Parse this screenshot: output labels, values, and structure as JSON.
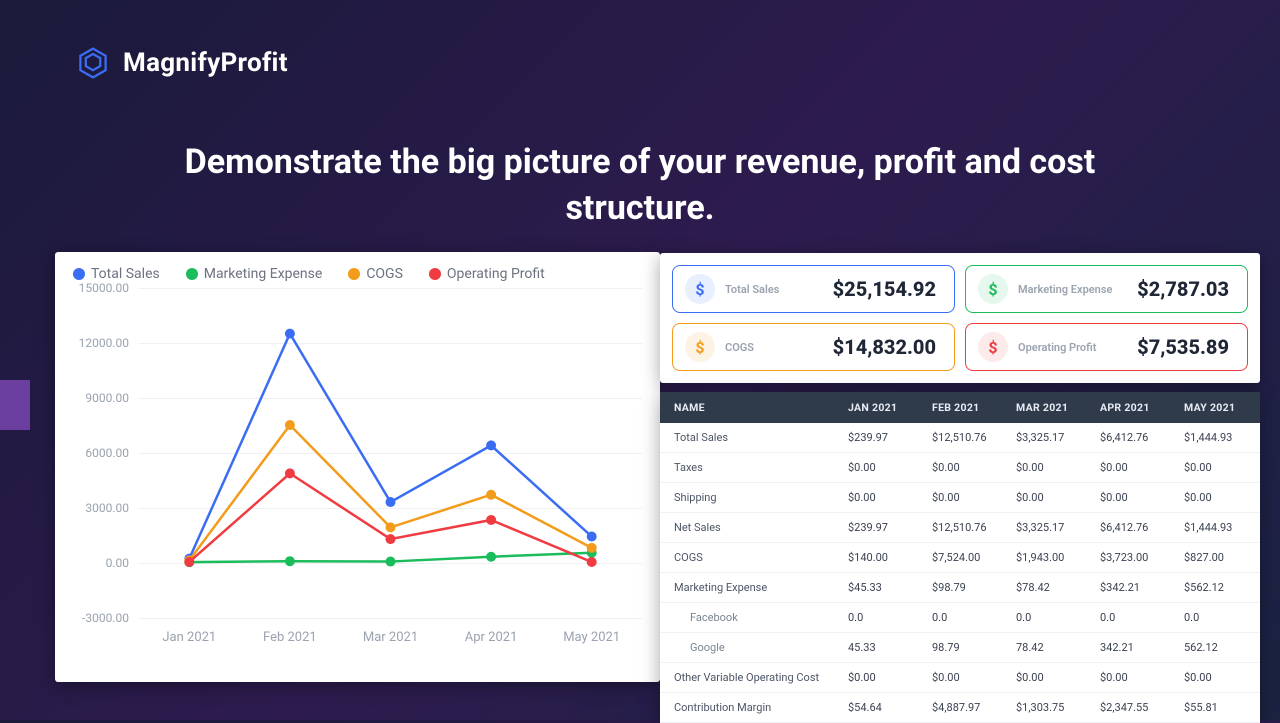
{
  "brand": "MagnifyProfit",
  "headline": "Demonstrate the big picture of your revenue, profit and cost structure.",
  "chart": {
    "type": "line",
    "background_color": "#ffffff",
    "grid_color": "#eef0f3",
    "x_labels": [
      "Jan 2021",
      "Feb 2021",
      "Mar 2021",
      "Apr 2021",
      "May 2021"
    ],
    "y_ticks": [
      -3000,
      0,
      3000,
      6000,
      9000,
      12000,
      15000
    ],
    "y_tick_labels": [
      "-3000.00",
      "0.00",
      "3000.00",
      "6000.00",
      "9000.00",
      "12000.00",
      "15000.00"
    ],
    "ylim": [
      -3000,
      15000
    ],
    "line_width": 2.5,
    "marker_radius": 5,
    "label_fontsize": 13,
    "tick_fontsize": 12,
    "series": [
      {
        "name": "Total Sales",
        "color": "#3b6df4",
        "values": [
          239.97,
          12510.76,
          3325.17,
          6412.76,
          1444.93
        ]
      },
      {
        "name": "Marketing Expense",
        "color": "#1abc5b",
        "values": [
          45.33,
          98.79,
          78.42,
          342.21,
          562.12
        ]
      },
      {
        "name": "COGS",
        "color": "#f39b1a",
        "values": [
          140.0,
          7524.0,
          1943.0,
          3723.0,
          827.0
        ]
      },
      {
        "name": "Operating Profit",
        "color": "#ef3b41",
        "values": [
          54.64,
          4887.97,
          1303.75,
          2347.55,
          55.81
        ]
      }
    ]
  },
  "cards": [
    {
      "label": "Total Sales",
      "value": "$25,154.92",
      "border": "#3b6df4",
      "icon_bg": "#e8effe",
      "icon_fg": "#3b6df4"
    },
    {
      "label": "Marketing Expense",
      "value": "$2,787.03",
      "border": "#1abc5b",
      "icon_bg": "#e6f7ee",
      "icon_fg": "#1abc5b"
    },
    {
      "label": "COGS",
      "value": "$14,832.00",
      "border": "#f39b1a",
      "icon_bg": "#fdf3e4",
      "icon_fg": "#f39b1a"
    },
    {
      "label": "Operating Profit",
      "value": "$7,535.89",
      "border": "#ef3b41",
      "icon_bg": "#fdeaea",
      "icon_fg": "#ef3b41"
    }
  ],
  "table": {
    "columns": [
      "NAME",
      "JAN 2021",
      "FEB 2021",
      "MAR 2021",
      "APR 2021",
      "MAY 2021"
    ],
    "col_widths_pct": [
      30,
      14,
      14,
      14,
      14,
      14
    ],
    "header_bg": "#2f3a4b",
    "header_fg": "#e8edf5",
    "row_border": "#f0f1f4",
    "rows": [
      {
        "cells": [
          "Total Sales",
          "$239.97",
          "$12,510.76",
          "$3,325.17",
          "$6,412.76",
          "$1,444.93"
        ]
      },
      {
        "cells": [
          "Taxes",
          "$0.00",
          "$0.00",
          "$0.00",
          "$0.00",
          "$0.00"
        ]
      },
      {
        "cells": [
          "Shipping",
          "$0.00",
          "$0.00",
          "$0.00",
          "$0.00",
          "$0.00"
        ]
      },
      {
        "cells": [
          "Net Sales",
          "$239.97",
          "$12,510.76",
          "$3,325.17",
          "$6,412.76",
          "$1,444.93"
        ]
      },
      {
        "cells": [
          "COGS",
          "$140.00",
          "$7,524.00",
          "$1,943.00",
          "$3,723.00",
          "$827.00"
        ]
      },
      {
        "cells": [
          "Marketing Expense",
          "$45.33",
          "$98.79",
          "$78.42",
          "$342.21",
          "$562.12"
        ]
      },
      {
        "cells": [
          "Facebook",
          "0.0",
          "0.0",
          "0.0",
          "0.0",
          "0.0"
        ],
        "indent": true
      },
      {
        "cells": [
          "Google",
          "45.33",
          "98.79",
          "78.42",
          "342.21",
          "562.12"
        ],
        "indent": true
      },
      {
        "cells": [
          "Other Variable Operating Cost",
          "$0.00",
          "$0.00",
          "$0.00",
          "$0.00",
          "$0.00"
        ]
      },
      {
        "cells": [
          "Contribution Margin",
          "$54.64",
          "$4,887.97",
          "$1,303.75",
          "$2,347.55",
          "$55.81"
        ]
      }
    ]
  }
}
